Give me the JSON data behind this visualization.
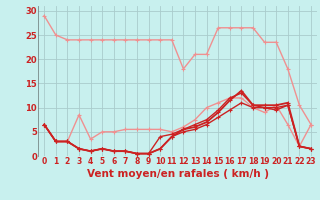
{
  "xlabel": "Vent moyen/en rafales ( km/h )",
  "background_color": "#c8f0ee",
  "grid_color": "#aacccc",
  "xlim": [
    -0.5,
    23.5
  ],
  "ylim": [
    0,
    31
  ],
  "yticks": [
    0,
    5,
    10,
    15,
    20,
    25,
    30
  ],
  "xticks": [
    0,
    1,
    2,
    3,
    4,
    5,
    6,
    7,
    8,
    9,
    10,
    11,
    12,
    13,
    14,
    15,
    16,
    17,
    18,
    19,
    20,
    21,
    22,
    23
  ],
  "series": [
    {
      "x": [
        0,
        1,
        2,
        3,
        4,
        5,
        6,
        7,
        8,
        9,
        10,
        11,
        12,
        13,
        14,
        15,
        16,
        17,
        18,
        19,
        20,
        21,
        22,
        23
      ],
      "y": [
        29,
        25,
        24,
        24,
        24,
        24,
        24,
        24,
        24,
        24,
        24,
        24,
        18,
        21,
        21,
        26.5,
        26.5,
        26.5,
        26.5,
        23.5,
        23.5,
        18,
        10.5,
        6.5
      ],
      "color": "#f09090",
      "lw": 1.0,
      "marker": "+"
    },
    {
      "x": [
        0,
        1,
        2,
        3,
        4,
        5,
        6,
        7,
        8,
        9,
        10,
        11,
        12,
        13,
        14,
        15,
        16,
        17,
        18,
        19,
        20,
        21,
        22,
        23
      ],
      "y": [
        6.5,
        3,
        3,
        8.5,
        3.5,
        5,
        5,
        5.5,
        5.5,
        5.5,
        5.5,
        5,
        6,
        7.5,
        10,
        11,
        12,
        12,
        10,
        9,
        10.5,
        6.5,
        2,
        6.5
      ],
      "color": "#f09090",
      "lw": 1.0,
      "marker": "+"
    },
    {
      "x": [
        0,
        1,
        2,
        3,
        4,
        5,
        6,
        7,
        8,
        9,
        10,
        11,
        12,
        13,
        14,
        15,
        16,
        17,
        18,
        19,
        20,
        21,
        22,
        23
      ],
      "y": [
        6.5,
        3,
        3,
        1.5,
        1,
        1.5,
        1,
        1,
        0.5,
        0.5,
        1.5,
        4,
        5,
        5.5,
        6.5,
        8,
        9.5,
        11,
        10,
        10,
        9.5,
        10.5,
        2,
        1.5
      ],
      "color": "#cc2222",
      "lw": 1.0,
      "marker": "+"
    },
    {
      "x": [
        0,
        1,
        2,
        3,
        4,
        5,
        6,
        7,
        8,
        9,
        10,
        11,
        12,
        13,
        14,
        15,
        16,
        17,
        18,
        19,
        20,
        21,
        22,
        23
      ],
      "y": [
        6.5,
        3,
        3,
        1.5,
        1,
        1.5,
        1,
        1,
        0.5,
        0.5,
        1.5,
        4,
        5.5,
        6,
        7,
        9,
        11.5,
        13.5,
        10.5,
        10.5,
        10.5,
        11,
        2,
        1.5
      ],
      "color": "#cc2222",
      "lw": 1.3,
      "marker": "+"
    },
    {
      "x": [
        0,
        1,
        2,
        3,
        4,
        5,
        6,
        7,
        8,
        9,
        10,
        11,
        12,
        13,
        14,
        15,
        16,
        17,
        18,
        19,
        20,
        21,
        22,
        23
      ],
      "y": [
        6.5,
        3,
        3,
        1.5,
        1,
        1.5,
        1,
        1,
        0.5,
        0.5,
        4,
        4.5,
        5.5,
        6.5,
        7.5,
        9.5,
        12,
        13,
        10.5,
        10,
        10,
        10.5,
        2,
        1.5
      ],
      "color": "#cc2222",
      "lw": 1.0,
      "marker": "+"
    }
  ],
  "xlabel_color": "#cc2222",
  "xlabel_fontsize": 7.5,
  "tick_fontsize": 5.5,
  "tick_color": "#cc2222"
}
